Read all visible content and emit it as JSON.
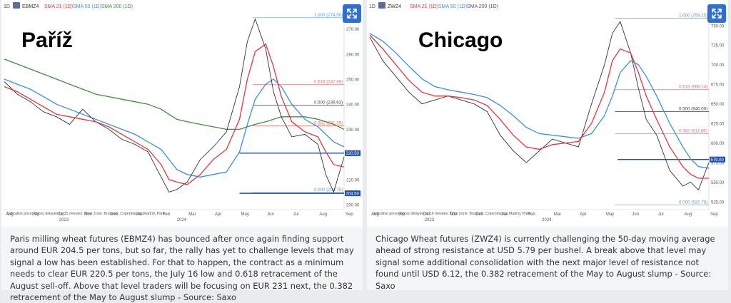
{
  "panels": [
    {
      "id": "left",
      "header": {
        "interval": "1D",
        "symbol": "EBMZ4",
        "sma21": "SMA 21 (1D)",
        "sma50": "SMA 50 (1D)",
        "sma200": "SMA 200 (1D)"
      },
      "overlay_title": "Paříž",
      "disclaimer": "Indicative price. Prices delayed by 15 minutes.  Time Zone: Brussels, Copenhagen, Madrid, Paris",
      "caption": "Paris milling wheat futures (EBMZ4) has bounced after once again finding support around EUR 204.5 per tons, but so far, the rally has yet to challenge levels that may signal a low has been established. For that to happen, the contract as a minimum needs to clear EUR 220.5 per tons, the July 16 low and 0.618 retracement of the August sell-off. Above that level traders will be focusing on EUR 231 next, the 0.382 retracement of the May to August slump - Source: Saxo"
    },
    {
      "id": "right",
      "header": {
        "interval": "1D",
        "symbol": "ZWZ4",
        "sma21": "SMA 21 (1D)",
        "sma50": "SMA 50 (1D)",
        "sma200": "SMA 200 (1D)"
      },
      "overlay_title": "Chicago",
      "disclaimer": "Indicative price. Prices delayed by 10 minutes.  Time Zone: Brussels, Copenhagen, Madrid, Paris",
      "caption": "Chicago Wheat futures (ZWZ4) is currently challenging the 50-day moving average ahead of strong resistance at USD 5.79 per bushel. A break above that level may signal some additional consolidation with the next major level of resistance not found until USD 6.12, the 0.382 retracement of the May to August slump - Source: Saxo"
    }
  ],
  "colors": {
    "price": "#333333",
    "sma21": "#e0383e",
    "sma50": "#3b8fd9",
    "sma200": "#3f8f3a",
    "fib": "#e26f6f",
    "fib_mid": "#444444",
    "fib_end": "#5a9bd5",
    "support": "#1f4fa8",
    "tag_bg": "#1f4fa8",
    "expand": "#2e6fd1"
  },
  "icons": {
    "expand": "expand-arrows-icon",
    "symbol_badge": "instrument-badge-icon"
  },
  "chart_data": [
    {
      "type": "line",
      "title": "EBMZ4",
      "x_labels": [
        "Aug",
        "Sep",
        "Oct",
        "Nov",
        "Dec",
        "Jan",
        "Feb",
        "Mar",
        "Apr",
        "May",
        "Jun",
        "Jul",
        "Aug",
        "Sep"
      ],
      "year_labels": [
        "2023",
        "2024"
      ],
      "y_ticks": [
        200,
        210,
        220,
        230,
        240,
        250,
        260,
        270
      ],
      "ylim": [
        198,
        277
      ],
      "price_x": [
        0,
        0.5,
        1,
        1.5,
        2,
        2.5,
        3,
        3.5,
        4,
        4.5,
        5,
        5.5,
        6,
        6.3,
        6.6,
        7,
        7.5,
        8,
        8.5,
        9,
        9.3,
        9.6,
        10,
        10.3,
        10.6,
        11,
        11.5,
        12,
        12.3,
        12.6,
        13
      ],
      "price": [
        249,
        244,
        241,
        237,
        235,
        232,
        238,
        233,
        230,
        226,
        224,
        221,
        211,
        205,
        206,
        209,
        218,
        223,
        229,
        247,
        265,
        274,
        262,
        245,
        235,
        227,
        228,
        224,
        212,
        205,
        219
      ],
      "sma21": [
        247,
        245,
        242,
        239,
        236,
        235,
        234,
        233,
        231,
        228,
        225,
        222,
        216,
        210,
        209,
        208,
        212,
        218,
        222,
        234,
        250,
        261,
        264,
        255,
        243,
        233,
        229,
        227,
        221,
        216,
        215
      ],
      "sma50": [
        250,
        248,
        246,
        243,
        240,
        238,
        236,
        234,
        232,
        230,
        228,
        225,
        222,
        218,
        214,
        212,
        211,
        212,
        213,
        221,
        232,
        242,
        248,
        250,
        247,
        240,
        234,
        231,
        228,
        225,
        223
      ],
      "sma200": [
        258,
        256,
        254,
        252,
        250,
        248,
        246,
        244,
        243,
        242,
        241,
        240,
        238,
        236,
        234,
        233,
        232,
        231,
        230,
        230,
        231,
        232,
        233,
        234,
        235,
        235,
        235,
        234,
        233,
        232,
        230
      ],
      "fib_levels": [
        {
          "ratio": "1.000",
          "value": 274.5,
          "label": "1.000 (274.50)"
        },
        {
          "ratio": "0.618",
          "value": 247.86,
          "label": "0.618 (247.86)"
        },
        {
          "ratio": "0.500",
          "value": 239.63,
          "label": "0.500 (239.63)"
        },
        {
          "ratio": "0.382",
          "value": 231.39,
          "label": "0.382 (231.39)"
        },
        {
          "ratio": "0.000",
          "value": 204.75,
          "label": "0.000 (204.75)"
        }
      ],
      "support_levels": [
        {
          "value": 220.5,
          "label": "220.50"
        },
        {
          "value": 204.5,
          "label": "204.50"
        }
      ]
    },
    {
      "type": "line",
      "title": "ZWZ4",
      "x_labels": [
        "Aug",
        "Sep",
        "Oct",
        "Nov",
        "Dec",
        "Jan",
        "Feb",
        "Mar",
        "Apr",
        "May",
        "Jun",
        "Jul",
        "Aug",
        "Sep"
      ],
      "year_labels": [
        "2023",
        "2024"
      ],
      "y_ticks": [
        525,
        550,
        575,
        600,
        625,
        650,
        675,
        700,
        725,
        750
      ],
      "ylim": [
        515,
        768
      ],
      "price_x": [
        0,
        0.5,
        1,
        1.5,
        2,
        2.5,
        3,
        3.5,
        4,
        4.5,
        5,
        5.5,
        6,
        6.5,
        7,
        7.5,
        8,
        8.5,
        9,
        9.3,
        9.6,
        10,
        10.3,
        10.6,
        11,
        11.5,
        12,
        12.3,
        12.6,
        13
      ],
      "price": [
        735,
        705,
        685,
        665,
        650,
        655,
        660,
        655,
        650,
        640,
        610,
        590,
        575,
        590,
        605,
        600,
        595,
        650,
        700,
        740,
        755,
        715,
        670,
        630,
        610,
        565,
        545,
        550,
        540,
        575
      ],
      "sma21": [
        738,
        720,
        700,
        680,
        665,
        660,
        660,
        658,
        655,
        648,
        630,
        610,
        595,
        592,
        598,
        600,
        602,
        625,
        665,
        705,
        720,
        715,
        690,
        660,
        630,
        595,
        570,
        560,
        555,
        555
      ],
      "sma50": [
        740,
        730,
        715,
        698,
        682,
        672,
        668,
        665,
        662,
        658,
        648,
        635,
        620,
        612,
        610,
        608,
        606,
        612,
        635,
        660,
        690,
        705,
        700,
        685,
        660,
        625,
        595,
        580,
        570,
        568
      ],
      "fib_levels": [
        {
          "ratio": "1.000",
          "value": 759.25,
          "label": "1.000 (759.25)"
        },
        {
          "ratio": "0.618",
          "value": 668.14,
          "label": "0.618 (668.14)"
        },
        {
          "ratio": "0.500",
          "value": 640.0,
          "label": "0.500 (640.00)"
        },
        {
          "ratio": "0.382",
          "value": 611.86,
          "label": "0.382 (611.86)"
        },
        {
          "ratio": "0.000",
          "value": 520.75,
          "label": "0.000 (520.75)"
        }
      ],
      "support_levels": [
        {
          "value": 579.0,
          "label": "579.00"
        }
      ]
    }
  ]
}
